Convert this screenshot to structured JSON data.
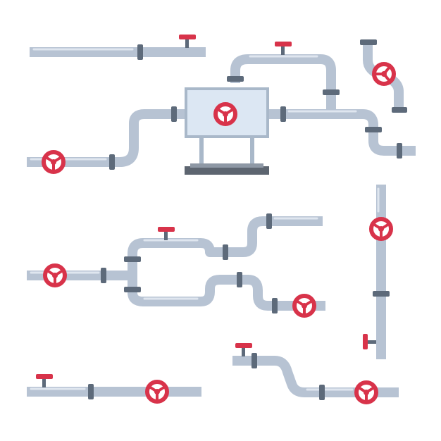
{
  "scene": {
    "description_free": true,
    "palette": {
      "pipe": "#b7c3d3",
      "pipe_highlight": "#dfe6ef",
      "flange": "#5d6a7a",
      "valve": "#d8334a",
      "tank_body": "#dce7f3",
      "tank_frame": "#a9b8c9",
      "base": "#5d6570",
      "background": "#ffffff"
    },
    "icons": [
      "handwheel-valve-icon",
      "gate-valve-icon",
      "flange-icon",
      "tank-icon"
    ]
  }
}
